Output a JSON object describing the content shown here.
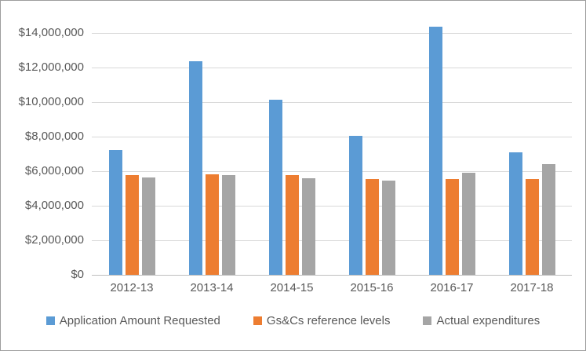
{
  "chart": {
    "background": "#ffffff",
    "border_color": "#9e9e9e",
    "text_color": "#595959",
    "gridline_color": "#d9d9d9",
    "axis_line_color": "#bfbfbf"
  },
  "chart_data": {
    "type": "bar",
    "title": "",
    "xlabel": "",
    "ylabel": "",
    "categories": [
      "2012-13",
      "2013-14",
      "2014-15",
      "2015-16",
      "2016-17",
      "2017-18"
    ],
    "series": [
      {
        "name": "Application Amount Requested",
        "color": "#5B9BD5",
        "values": [
          7250000,
          12400000,
          10150000,
          8050000,
          14400000,
          7100000
        ]
      },
      {
        "name": "Gs&Cs reference levels",
        "color": "#ED7D31",
        "values": [
          5800000,
          5850000,
          5800000,
          5550000,
          5550000,
          5550000
        ]
      },
      {
        "name": "Actual expenditures",
        "color": "#A5A5A5",
        "values": [
          5650000,
          5800000,
          5600000,
          5450000,
          5900000,
          6400000
        ]
      }
    ],
    "yticks": [
      0,
      2000000,
      4000000,
      6000000,
      8000000,
      10000000,
      12000000,
      14000000
    ],
    "ytick_labels": [
      "$0",
      "$2,000,000",
      "$4,000,000",
      "$6,000,000",
      "$8,000,000",
      "$10,000,000",
      "$12,000,000",
      "$14,000,000"
    ],
    "ylim": [
      0,
      14000000
    ],
    "grid": true,
    "legend_position": "bottom"
  }
}
